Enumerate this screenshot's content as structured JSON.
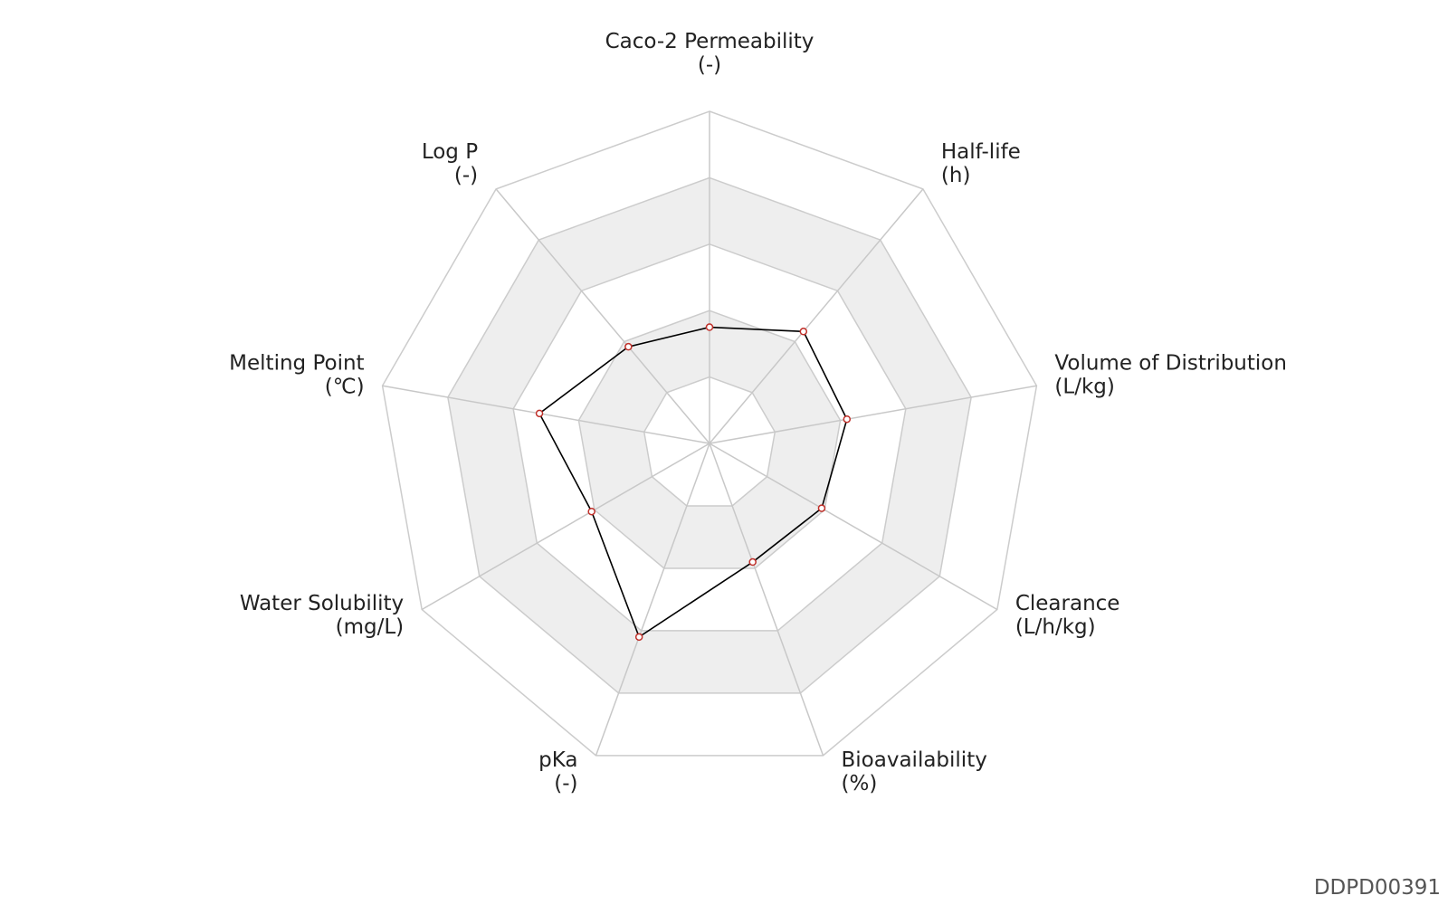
{
  "chart_data": {
    "type": "radar",
    "categories": [
      "Caco-2 Permeability",
      "Half-life",
      "Volume of Distribution",
      "Clearance",
      "Bioavailability",
      "pKa",
      "Water Solubility",
      "Melting Point",
      "Log P"
    ],
    "units": [
      "(-)",
      "(h)",
      "(L/kg)",
      "(L/h/kg)",
      "(%)",
      "(-)",
      "(mg/L)",
      "(℃)",
      "(-)"
    ],
    "values": [
      0.35,
      0.44,
      0.42,
      0.39,
      0.38,
      0.62,
      0.41,
      0.52,
      0.38
    ],
    "color": "#000000",
    "marker_color": "#c0302a",
    "ylim": [
      0,
      1
    ],
    "yticks": [
      0.2,
      0.4,
      0.6,
      0.8,
      1
    ],
    "grid": true,
    "footer": "DDPD00391"
  }
}
